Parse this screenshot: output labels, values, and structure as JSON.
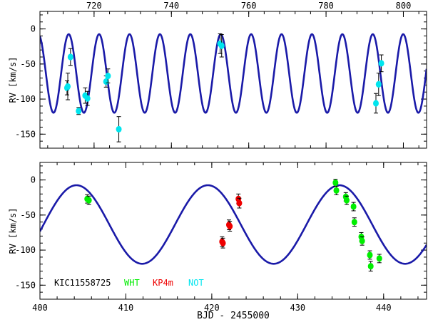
{
  "chart_data": [
    {
      "type": "scatter",
      "panel": "top",
      "title": "",
      "xlabel": "",
      "ylabel": "RV [km/s]",
      "xlim": [
        706,
        806
      ],
      "ylim": [
        -170,
        25
      ],
      "x_ticks": [
        720,
        740,
        760,
        780,
        800
      ],
      "x_tick_labels": [
        "720",
        "740",
        "760",
        "780",
        "800"
      ],
      "x_tick_position": "top",
      "y_ticks": [
        0,
        -50,
        -100,
        -150
      ],
      "y_tick_labels": [
        "0",
        "-50",
        "-100",
        "-150"
      ],
      "model": {
        "name": "orbit fit",
        "color": "#1a1aa8",
        "gamma": -63.5,
        "amplitude": 56,
        "period": 7.865,
        "t_max": 744.9
      },
      "series": [
        {
          "name": "NOT",
          "color": "#00e5ee",
          "points": [
            {
              "x": 713.0,
              "y": -84,
              "err": 10
            },
            {
              "x": 713.2,
              "y": -82,
              "err": 19
            },
            {
              "x": 713.9,
              "y": -40,
              "err": 12
            },
            {
              "x": 716.0,
              "y": -117,
              "err": 5
            },
            {
              "x": 717.7,
              "y": -95,
              "err": 11
            },
            {
              "x": 718.3,
              "y": -99,
              "err": 10
            },
            {
              "x": 723.1,
              "y": -75,
              "err": 8
            },
            {
              "x": 723.6,
              "y": -67,
              "err": 10
            },
            {
              "x": 726.4,
              "y": -143,
              "err": 18
            },
            {
              "x": 752.6,
              "y": -21,
              "err": 14
            },
            {
              "x": 753.0,
              "y": -24,
              "err": 16
            },
            {
              "x": 792.9,
              "y": -106,
              "err": 14
            },
            {
              "x": 793.6,
              "y": -79,
              "err": 16
            },
            {
              "x": 794.3,
              "y": -49,
              "err": 12
            }
          ]
        }
      ]
    },
    {
      "type": "scatter",
      "panel": "bottom",
      "title": "",
      "xlabel": "BJD - 2455000",
      "ylabel": "RV [km/s]",
      "xlim": [
        400,
        445
      ],
      "ylim": [
        -170,
        25
      ],
      "x_ticks": [
        400,
        410,
        420,
        430,
        440
      ],
      "x_tick_labels": [
        "400",
        "410",
        "420",
        "430",
        "440"
      ],
      "y_ticks": [
        0,
        -50,
        -100,
        -150
      ],
      "y_tick_labels": [
        "0",
        "-50",
        "-100",
        "-150"
      ],
      "model": {
        "name": "orbit fit",
        "color": "#1a1aa8",
        "gamma": -63.5,
        "amplitude": 56,
        "period": 15.3,
        "t_max": 404.25
      },
      "series": [
        {
          "name": "WHT",
          "color": "#00ee00",
          "points": [
            {
              "x": 405.5,
              "y": -27,
              "err": 6
            },
            {
              "x": 405.7,
              "y": -29,
              "err": 6
            },
            {
              "x": 434.4,
              "y": -4,
              "err": 5
            },
            {
              "x": 434.5,
              "y": -15,
              "err": 6
            },
            {
              "x": 435.6,
              "y": -24,
              "err": 6
            },
            {
              "x": 435.7,
              "y": -29,
              "err": 6
            },
            {
              "x": 436.5,
              "y": -38,
              "err": 6
            },
            {
              "x": 436.6,
              "y": -60,
              "err": 6
            },
            {
              "x": 437.4,
              "y": -81,
              "err": 6
            },
            {
              "x": 437.5,
              "y": -87,
              "err": 6
            },
            {
              "x": 438.4,
              "y": -107,
              "err": 6
            },
            {
              "x": 438.5,
              "y": -123,
              "err": 7
            },
            {
              "x": 439.5,
              "y": -112,
              "err": 6
            }
          ]
        },
        {
          "name": "KP4m",
          "color": "#ee0000",
          "points": [
            {
              "x": 421.2,
              "y": -88,
              "err": 7
            },
            {
              "x": 421.3,
              "y": -90,
              "err": 7
            },
            {
              "x": 422.0,
              "y": -64,
              "err": 7
            },
            {
              "x": 422.1,
              "y": -66,
              "err": 7
            },
            {
              "x": 423.1,
              "y": -27,
              "err": 7
            },
            {
              "x": 423.2,
              "y": -33,
              "err": 7
            }
          ]
        }
      ]
    }
  ],
  "legend": {
    "label": "KIC11558725",
    "entries": [
      {
        "name": "WHT",
        "color": "#00ee00"
      },
      {
        "name": "KP4m",
        "color": "#ee0000"
      },
      {
        "name": "NOT",
        "color": "#00e5ee"
      }
    ]
  }
}
